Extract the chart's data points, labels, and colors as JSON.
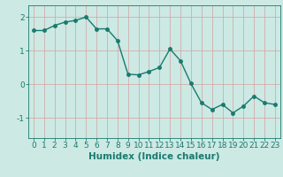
{
  "x": [
    0,
    1,
    2,
    3,
    4,
    5,
    6,
    7,
    8,
    9,
    10,
    11,
    12,
    13,
    14,
    15,
    16,
    17,
    18,
    19,
    20,
    21,
    22,
    23
  ],
  "y": [
    1.6,
    1.6,
    1.75,
    1.85,
    1.9,
    2.0,
    1.65,
    1.65,
    1.3,
    0.3,
    0.28,
    0.38,
    0.5,
    1.05,
    0.7,
    0.02,
    -0.55,
    -0.75,
    -0.6,
    -0.85,
    -0.65,
    -0.35,
    -0.55,
    -0.6
  ],
  "line_color": "#1a7a6e",
  "marker": "o",
  "markersize": 2.5,
  "linewidth": 1.0,
  "xlabel": "Humidex (Indice chaleur)",
  "xlim": [
    -0.5,
    23.5
  ],
  "ylim": [
    -1.6,
    2.35
  ],
  "yticks": [
    -1,
    0,
    1,
    2
  ],
  "xticks": [
    0,
    1,
    2,
    3,
    4,
    5,
    6,
    7,
    8,
    9,
    10,
    11,
    12,
    13,
    14,
    15,
    16,
    17,
    18,
    19,
    20,
    21,
    22,
    23
  ],
  "bg_color": "#cce9e4",
  "grid_color": "#b0d8d2",
  "line_text_color": "#1a7a6e",
  "xlabel_fontsize": 7.5,
  "tick_fontsize": 6.5
}
